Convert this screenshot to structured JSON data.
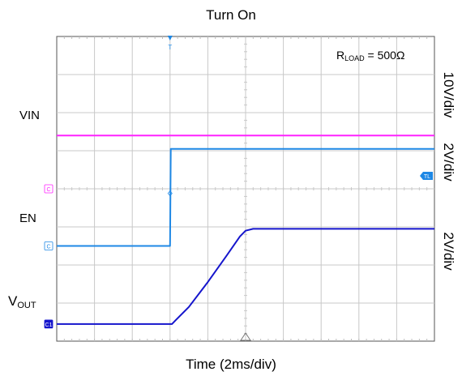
{
  "chart_data": {
    "type": "line",
    "title": "Turn On",
    "xlabel": "Time (2ms/div)",
    "annotation": {
      "prefix": "R",
      "sub": "LOAD",
      "suffix": " = 500Ω"
    },
    "x_divisions": 10,
    "y_divisions": 8,
    "grid": true,
    "trigger_marker": "T",
    "channel_markers": {
      "vin": "C",
      "en": "C",
      "vout": "C1",
      "trigger_level": "TL"
    },
    "series": [
      {
        "name": "VIN",
        "sub": "",
        "scale": "10V/div",
        "color": "#ff22ff",
        "x": [
          0,
          10
        ],
        "y": [
          5.4,
          5.4
        ]
      },
      {
        "name": "EN",
        "sub": "",
        "scale": "2V/div",
        "color": "#1e88e5",
        "x": [
          0,
          3.0,
          3.02,
          10
        ],
        "y": [
          2.5,
          2.5,
          5.05,
          5.05
        ]
      },
      {
        "name": "V",
        "sub": "OUT",
        "scale": "2V/div",
        "color": "#1515cc",
        "x": [
          0,
          3.05,
          3.15,
          3.5,
          4.0,
          4.5,
          4.85,
          5.0,
          5.2,
          10
        ],
        "y": [
          0.45,
          0.45,
          0.55,
          0.9,
          1.55,
          2.25,
          2.75,
          2.9,
          2.95,
          2.95
        ]
      }
    ]
  }
}
